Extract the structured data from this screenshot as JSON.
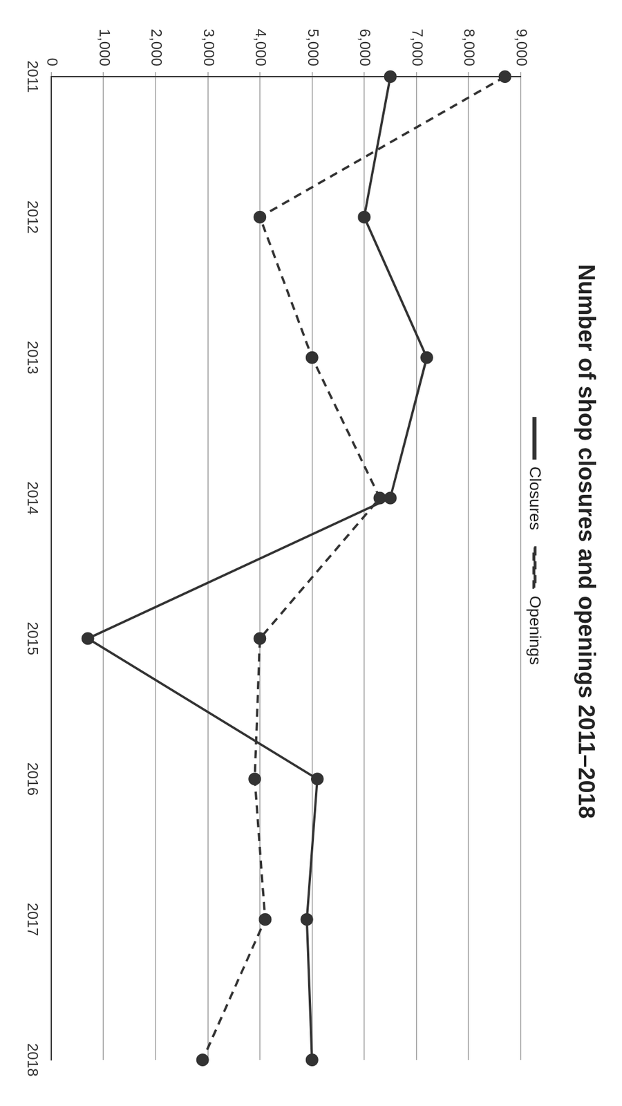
{
  "chart_data": {
    "type": "line",
    "title": "Number of shop closures and openings 2011–2018",
    "categories": [
      "2011",
      "2012",
      "2013",
      "2014",
      "2015",
      "2016",
      "2017",
      "2018"
    ],
    "series": [
      {
        "name": "Closures",
        "color": "#333333",
        "marker": "circle",
        "line_style": "solid",
        "values": [
          6500,
          6000,
          7200,
          6500,
          700,
          5100,
          4900,
          5000
        ]
      },
      {
        "name": "Openings",
        "color": "#333333",
        "marker": "circle",
        "line_style": "dashed",
        "values": [
          8700,
          4000,
          5000,
          6300,
          4000,
          3900,
          4100,
          2900
        ]
      }
    ],
    "ylim": [
      0,
      9000
    ],
    "yticks": [
      0,
      {
        "value": 1000,
        "label": "1,000"
      },
      {
        "value": 2000,
        "label": "2,000"
      },
      {
        "value": 3000,
        "label": "3,000"
      },
      {
        "value": 4000,
        "label": "4,000"
      },
      {
        "value": 5000,
        "label": "5,000"
      },
      {
        "value": 6000,
        "label": "6,000"
      },
      {
        "value": 7000,
        "label": "7,000"
      },
      {
        "value": 8000,
        "label": "8,000"
      },
      {
        "value": 9000,
        "label": "9,000"
      }
    ],
    "grid": true,
    "legend": "top"
  }
}
